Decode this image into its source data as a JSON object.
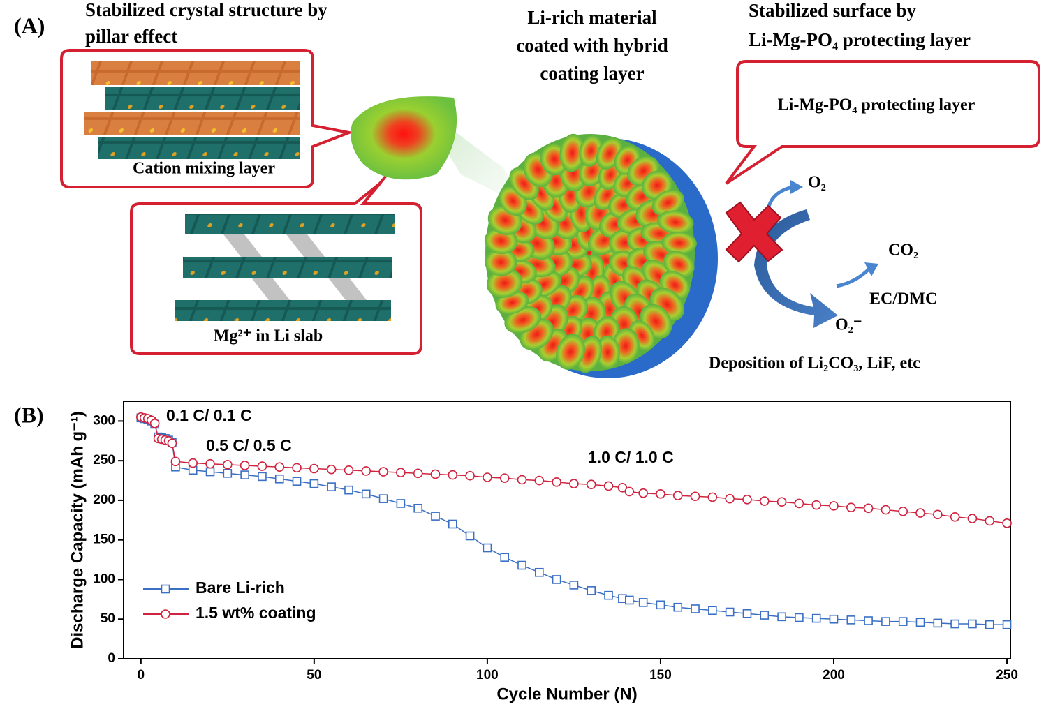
{
  "panel_a": {
    "label": "(A)",
    "left_title": [
      "Stabilized crystal structure by",
      "pillar effect"
    ],
    "center_title": [
      "Li-rich material",
      "coated with hybrid",
      "coating layer"
    ],
    "right_title": [
      "Stabilized surface by",
      "Li-Mg-PO₄ protecting layer"
    ],
    "callout_cation": "Cation mixing layer",
    "callout_mg": "Mg²⁺ in Li slab",
    "callout_layer": "Li-Mg-PO₄ protecting layer",
    "o2": "O₂",
    "co2": "CO₂",
    "ecdmc": "EC/DMC",
    "o2_minus": "O₂⁻",
    "deposition": "Deposition of Li₂CO₃, LiF, etc"
  },
  "panel_b_label": "(B)",
  "chart_data": {
    "type": "line",
    "x_label": "Cycle Number (N)",
    "y_label": "Discharge Capacity (mAh g⁻¹)",
    "annotations": [
      "0.1 C/ 0.1 C",
      "0.5 C/ 0.5 C",
      "1.0 C/ 1.0 C"
    ],
    "x": [
      0,
      1,
      2,
      3,
      4,
      5,
      6,
      7,
      8,
      9,
      10,
      15,
      20,
      25,
      30,
      35,
      40,
      45,
      50,
      55,
      60,
      65,
      70,
      75,
      80,
      85,
      90,
      95,
      100,
      105,
      110,
      115,
      120,
      125,
      130,
      135,
      139,
      141,
      145,
      150,
      155,
      160,
      165,
      170,
      175,
      180,
      185,
      190,
      195,
      200,
      205,
      210,
      215,
      220,
      225,
      230,
      235,
      240,
      245,
      250
    ],
    "series": [
      {
        "name": "Bare Li-rich",
        "color": "#3a6fc4",
        "marker": "square",
        "values": [
          304,
          303,
          302,
          300,
          296,
          280,
          279,
          278,
          276,
          273,
          242,
          238,
          236,
          234,
          232,
          230,
          227,
          224,
          221,
          217,
          213,
          208,
          202,
          196,
          190,
          180,
          170,
          155,
          140,
          128,
          118,
          109,
          100,
          93,
          86,
          80,
          76,
          74,
          71,
          68,
          65,
          63,
          61,
          59,
          57,
          55,
          53,
          52,
          51,
          50,
          49,
          48,
          47,
          47,
          46,
          45,
          44,
          44,
          43,
          43
        ]
      },
      {
        "name": "1.5 wt% coating",
        "color": "#d0233f",
        "marker": "circle",
        "values": [
          305,
          304,
          303,
          301,
          297,
          278,
          277,
          276,
          275,
          272,
          249,
          247,
          246,
          245,
          244,
          243,
          242,
          241,
          240,
          239,
          238,
          237,
          236,
          235,
          234,
          233,
          232,
          231,
          229,
          228,
          226,
          225,
          223,
          221,
          220,
          218,
          216,
          211,
          209,
          208,
          206,
          205,
          204,
          202,
          201,
          199,
          198,
          196,
          194,
          193,
          191,
          190,
          188,
          186,
          184,
          182,
          179,
          177,
          174,
          171
        ]
      }
    ],
    "xlim": [
      -5,
      251
    ],
    "xticks": [
      0,
      50,
      100,
      150,
      200,
      250
    ],
    "ylim": [
      0,
      325
    ],
    "yticks": [
      0,
      50,
      100,
      150,
      200,
      250,
      300
    ],
    "legend": "lower left"
  }
}
